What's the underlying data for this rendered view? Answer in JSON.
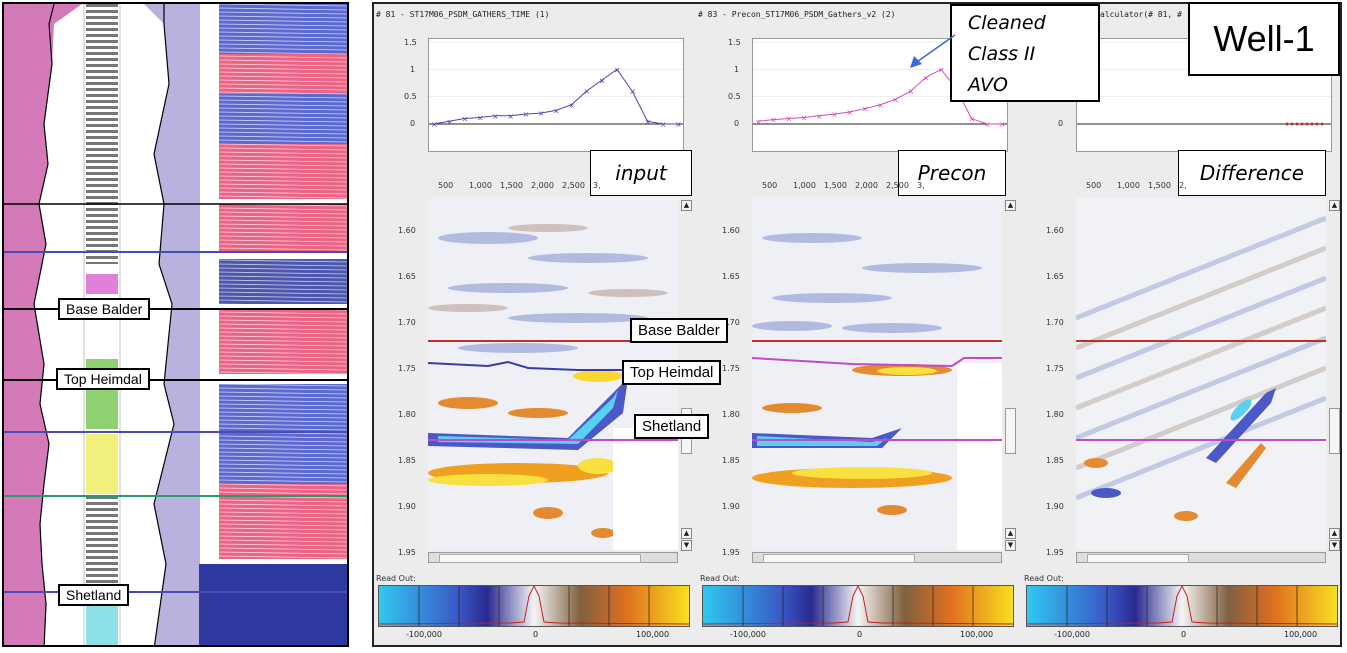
{
  "well_title": "Well-1",
  "left_log": {
    "horizon_labels": [
      "Base Balder",
      "Top Heimdal",
      "Shetland"
    ]
  },
  "gather_titles": [
    "# 81 - ST17M06_PSDM_GATHERS_TIME (1)",
    "# 83 - Precon_ST17M06_PSDM_Gathers_v2 (2)",
    "alculator(# 81, #"
  ],
  "panel_headers": [
    "input",
    "Precon",
    "Difference"
  ],
  "annotation": {
    "lines": [
      "Cleaned",
      "Class II",
      "AVO"
    ]
  },
  "amplitude_axis_ticks": [
    "1.5",
    "1",
    "0.5",
    "0"
  ],
  "offset_ticks": [
    "500",
    "1,000",
    "1,500",
    "2,000",
    "2,500",
    "3,"
  ],
  "offset_ticks_diff": [
    "500",
    "1,000",
    "1,500",
    "2,"
  ],
  "time_ticks": [
    "1.60",
    "1.65",
    "1.70",
    "1.75",
    "1.80",
    "1.85",
    "1.90",
    "1.95"
  ],
  "seismic_horizon_labels": [
    "Base Balder",
    "Top Heimdal",
    "Shetland"
  ],
  "readout_label": "Read Out:",
  "colorbar_ticks": [
    "-100,000",
    "0",
    "100,000"
  ],
  "colors": {
    "log_pink": "#d47ab8",
    "log_lavender": "#b9b1de",
    "horizon_red": "#c0302a",
    "horizon_magenta": "#c04ac8",
    "horizon_blue": "#3a3aa8",
    "input_curve": "#4a4ab0",
    "precon_curve": "#d050b8"
  },
  "chart_data": [
    {
      "type": "line",
      "title": "# 81 - ST17M06_PSDM_GATHERS_TIME (1)",
      "ylim": [
        0,
        1.5
      ],
      "x": [
        0,
        250,
        500,
        750,
        1000,
        1250,
        1500,
        1750,
        2000,
        2250,
        2500,
        2750,
        3000,
        3250,
        3500,
        3750,
        4000
      ],
      "values": [
        0,
        0.05,
        0.1,
        0.12,
        0.15,
        0.15,
        0.18,
        0.2,
        0.25,
        0.35,
        0.6,
        0.8,
        1.0,
        0.6,
        0.05,
        0,
        0
      ]
    },
    {
      "type": "line",
      "title": "# 83 - Precon_ST17M06_PSDM_Gathers_v2 (2)",
      "ylim": [
        0,
        1.5
      ],
      "x": [
        0,
        250,
        500,
        750,
        1000,
        1250,
        1500,
        1750,
        2000,
        2250,
        2500,
        2750,
        3000,
        3250,
        3500,
        3750,
        4000
      ],
      "values": [
        0.05,
        0.08,
        0.1,
        0.12,
        0.15,
        0.18,
        0.22,
        0.28,
        0.35,
        0.45,
        0.6,
        0.85,
        1.0,
        0.65,
        0.1,
        0,
        0
      ]
    },
    {
      "type": "line",
      "title": "alculator(# 81, #",
      "ylim": [
        0,
        1.5
      ],
      "x": [
        0,
        4000
      ],
      "values": [
        0,
        0
      ]
    }
  ]
}
